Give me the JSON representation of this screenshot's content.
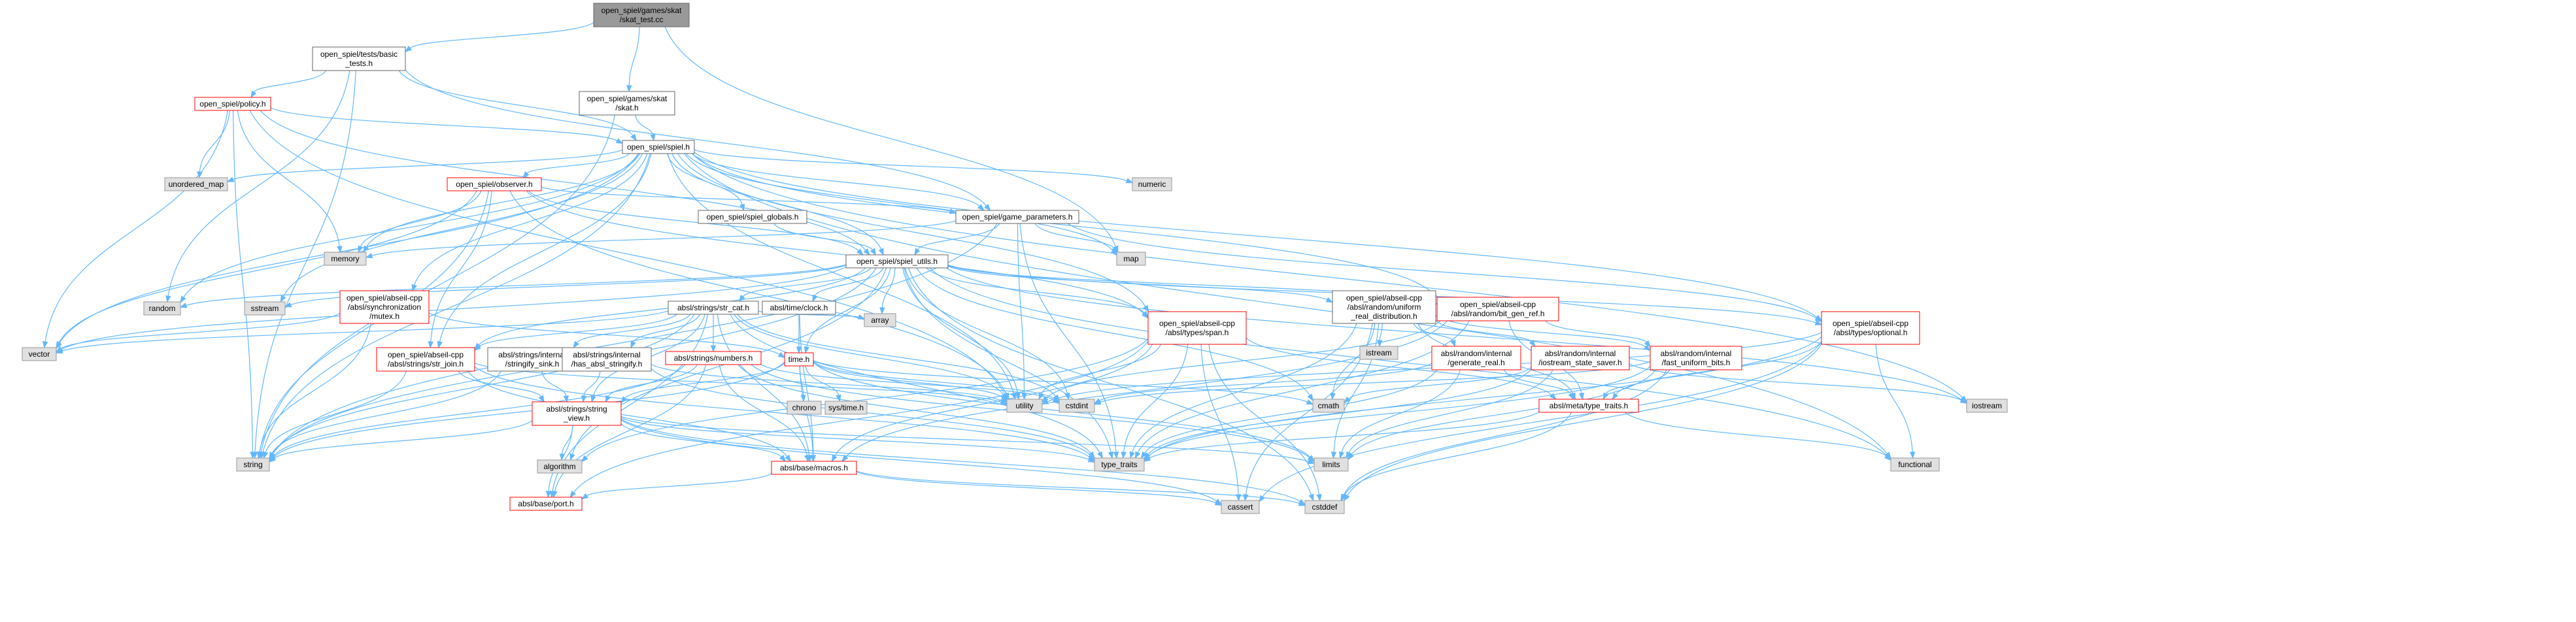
{
  "colors": {
    "edge": "#63b8ff",
    "node_fill": "#ffffff",
    "node_stroke": "#666666",
    "focus_fill": "#999999",
    "focus_stroke": "#666666",
    "broken_stroke": "#ff0000",
    "system_fill": "#e0e0e0",
    "system_stroke": "#999999"
  },
  "nodes": [
    {
      "id": "skat_test",
      "kind": "focus",
      "lines": [
        "open_spiel/games/skat",
        "/skat_test.cc"
      ]
    },
    {
      "id": "basic_tests",
      "kind": "local",
      "lines": [
        "open_spiel/tests/basic",
        "_tests.h"
      ]
    },
    {
      "id": "skat_h",
      "kind": "local",
      "lines": [
        "open_spiel/games/skat",
        "/skat.h"
      ]
    },
    {
      "id": "policy",
      "kind": "broken",
      "lines": [
        "open_spiel/policy.h"
      ]
    },
    {
      "id": "spiel",
      "kind": "local",
      "lines": [
        "open_spiel/spiel.h"
      ]
    },
    {
      "id": "unordered_map",
      "kind": "system",
      "lines": [
        "unordered_map"
      ]
    },
    {
      "id": "observer",
      "kind": "broken",
      "lines": [
        "open_spiel/observer.h"
      ]
    },
    {
      "id": "spiel_globals",
      "kind": "local",
      "lines": [
        "open_spiel/spiel_globals.h"
      ]
    },
    {
      "id": "game_parameters",
      "kind": "local",
      "lines": [
        "open_spiel/game_parameters.h"
      ]
    },
    {
      "id": "numeric",
      "kind": "system",
      "lines": [
        "numeric"
      ]
    },
    {
      "id": "memory",
      "kind": "system",
      "lines": [
        "memory"
      ]
    },
    {
      "id": "map",
      "kind": "system",
      "lines": [
        "map"
      ]
    },
    {
      "id": "spiel_utils",
      "kind": "local",
      "lines": [
        "open_spiel/spiel_utils.h"
      ]
    },
    {
      "id": "random",
      "kind": "system",
      "lines": [
        "random"
      ]
    },
    {
      "id": "sstream",
      "kind": "system",
      "lines": [
        "sstream"
      ]
    },
    {
      "id": "mutex",
      "kind": "broken",
      "lines": [
        "open_spiel/abseil-cpp",
        "/absl/synchronization",
        "/mutex.h"
      ]
    },
    {
      "id": "str_cat",
      "kind": "local",
      "lines": [
        "absl/strings/str_cat.h"
      ]
    },
    {
      "id": "clock",
      "kind": "local",
      "lines": [
        "absl/time/clock.h"
      ]
    },
    {
      "id": "uniform_real",
      "kind": "local",
      "lines": [
        "open_spiel/abseil-cpp",
        "/absl/random/uniform",
        "_real_distribution.h"
      ]
    },
    {
      "id": "bit_gen_ref",
      "kind": "broken",
      "lines": [
        "open_spiel/abseil-cpp",
        "/absl/random/bit_gen_ref.h"
      ]
    },
    {
      "id": "vector",
      "kind": "system",
      "lines": [
        "vector"
      ]
    },
    {
      "id": "str_join",
      "kind": "broken",
      "lines": [
        "open_spiel/abseil-cpp",
        "/absl/strings/str_join.h"
      ]
    },
    {
      "id": "stringify_sink",
      "kind": "local",
      "lines": [
        "absl/strings/internal",
        "/stringify_sink.h"
      ]
    },
    {
      "id": "has_absl_stringify",
      "kind": "local",
      "lines": [
        "absl/strings/internal",
        "/has_absl_stringify.h"
      ]
    },
    {
      "id": "numbers",
      "kind": "broken",
      "lines": [
        "absl/strings/numbers.h"
      ]
    },
    {
      "id": "time",
      "kind": "broken",
      "lines": [
        "time.h"
      ]
    },
    {
      "id": "array",
      "kind": "system",
      "lines": [
        "array"
      ]
    },
    {
      "id": "span",
      "kind": "broken",
      "lines": [
        "open_spiel/abseil-cpp",
        "/absl/types/span.h"
      ]
    },
    {
      "id": "istream",
      "kind": "system",
      "lines": [
        "istream"
      ]
    },
    {
      "id": "generate_real",
      "kind": "broken",
      "lines": [
        "absl/random/internal",
        "/generate_real.h"
      ]
    },
    {
      "id": "iostream_state_saver",
      "kind": "broken",
      "lines": [
        "absl/random/internal",
        "/iostream_state_saver.h"
      ]
    },
    {
      "id": "fast_uniform_bits",
      "kind": "broken",
      "lines": [
        "absl/random/internal",
        "/fast_uniform_bits.h"
      ]
    },
    {
      "id": "optional",
      "kind": "broken",
      "lines": [
        "open_spiel/abseil-cpp",
        "/absl/types/optional.h"
      ]
    },
    {
      "id": "string_view",
      "kind": "broken",
      "lines": [
        "absl/strings/string",
        "_view.h"
      ]
    },
    {
      "id": "chrono",
      "kind": "system",
      "lines": [
        "chrono"
      ]
    },
    {
      "id": "sys_time",
      "kind": "system",
      "lines": [
        "sys/time.h"
      ]
    },
    {
      "id": "utility",
      "kind": "system",
      "lines": [
        "utility"
      ]
    },
    {
      "id": "cstdint",
      "kind": "system",
      "lines": [
        "cstdint"
      ]
    },
    {
      "id": "cmath",
      "kind": "system",
      "lines": [
        "cmath"
      ]
    },
    {
      "id": "type_traits_absl",
      "kind": "broken",
      "lines": [
        "absl/meta/type_traits.h"
      ]
    },
    {
      "id": "iostream",
      "kind": "system",
      "lines": [
        "iostream"
      ]
    },
    {
      "id": "string",
      "kind": "system",
      "lines": [
        "string"
      ]
    },
    {
      "id": "algorithm",
      "kind": "system",
      "lines": [
        "algorithm"
      ]
    },
    {
      "id": "type_traits",
      "kind": "system",
      "lines": [
        "type_traits"
      ]
    },
    {
      "id": "macros",
      "kind": "broken",
      "lines": [
        "absl/base/macros.h"
      ]
    },
    {
      "id": "limits",
      "kind": "system",
      "lines": [
        "limits"
      ]
    },
    {
      "id": "functional",
      "kind": "system",
      "lines": [
        "functional"
      ]
    },
    {
      "id": "port",
      "kind": "broken",
      "lines": [
        "absl/base/port.h"
      ]
    },
    {
      "id": "cassert",
      "kind": "system",
      "lines": [
        "cassert"
      ]
    },
    {
      "id": "cstddef",
      "kind": "system",
      "lines": [
        "cstddef"
      ]
    }
  ],
  "edges": [
    [
      "skat_test",
      "basic_tests"
    ],
    [
      "skat_test",
      "skat_h"
    ],
    [
      "skat_test",
      "map"
    ],
    [
      "basic_tests",
      "policy"
    ],
    [
      "basic_tests",
      "spiel"
    ],
    [
      "basic_tests",
      "game_parameters"
    ],
    [
      "basic_tests",
      "random"
    ],
    [
      "basic_tests",
      "string"
    ],
    [
      "skat_h",
      "spiel"
    ],
    [
      "skat_h",
      "string"
    ],
    [
      "policy",
      "spiel"
    ],
    [
      "policy",
      "spiel_utils"
    ],
    [
      "policy",
      "unordered_map"
    ],
    [
      "policy",
      "memory"
    ],
    [
      "policy",
      "string"
    ],
    [
      "policy",
      "vector"
    ],
    [
      "policy",
      "utility"
    ],
    [
      "spiel",
      "unordered_map"
    ],
    [
      "spiel",
      "observer"
    ],
    [
      "spiel",
      "spiel_globals"
    ],
    [
      "spiel",
      "game_parameters"
    ],
    [
      "spiel",
      "spiel_utils"
    ],
    [
      "spiel",
      "numeric"
    ],
    [
      "spiel",
      "memory"
    ],
    [
      "spiel",
      "map"
    ],
    [
      "spiel",
      "random"
    ],
    [
      "spiel",
      "sstream"
    ],
    [
      "spiel",
      "string"
    ],
    [
      "spiel",
      "vector"
    ],
    [
      "spiel",
      "mutex"
    ],
    [
      "spiel",
      "str_join"
    ],
    [
      "spiel",
      "span"
    ],
    [
      "spiel",
      "optional"
    ],
    [
      "spiel",
      "bit_gen_ref"
    ],
    [
      "spiel",
      "utility"
    ],
    [
      "spiel",
      "functional"
    ],
    [
      "spiel",
      "iostream"
    ],
    [
      "observer",
      "game_parameters"
    ],
    [
      "observer",
      "spiel_utils"
    ],
    [
      "observer",
      "memory"
    ],
    [
      "observer",
      "string"
    ],
    [
      "observer",
      "vector"
    ],
    [
      "observer",
      "span"
    ],
    [
      "observer",
      "str_join"
    ],
    [
      "observer",
      "utility"
    ],
    [
      "spiel_globals",
      "spiel_utils"
    ],
    [
      "game_parameters",
      "spiel_utils"
    ],
    [
      "game_parameters",
      "map"
    ],
    [
      "game_parameters",
      "memory"
    ],
    [
      "game_parameters",
      "string"
    ],
    [
      "game_parameters",
      "utility"
    ],
    [
      "game_parameters",
      "optional"
    ],
    [
      "game_parameters",
      "type_traits"
    ],
    [
      "spiel_utils",
      "random"
    ],
    [
      "spiel_utils",
      "sstream"
    ],
    [
      "spiel_utils",
      "str_cat"
    ],
    [
      "spiel_utils",
      "clock"
    ],
    [
      "spiel_utils",
      "uniform_real"
    ],
    [
      "spiel_utils",
      "bit_gen_ref"
    ],
    [
      "spiel_utils",
      "span"
    ],
    [
      "spiel_utils",
      "str_join"
    ],
    [
      "spiel_utils",
      "optional"
    ],
    [
      "spiel_utils",
      "time"
    ],
    [
      "spiel_utils",
      "array"
    ],
    [
      "spiel_utils",
      "vector"
    ],
    [
      "spiel_utils",
      "string"
    ],
    [
      "spiel_utils",
      "utility"
    ],
    [
      "spiel_utils",
      "cstdint"
    ],
    [
      "spiel_utils",
      "algorithm"
    ],
    [
      "spiel_utils",
      "cmath"
    ],
    [
      "spiel_utils",
      "iostream"
    ],
    [
      "spiel_utils",
      "cstddef"
    ],
    [
      "spiel_utils",
      "functional"
    ],
    [
      "spiel_utils",
      "type_traits"
    ],
    [
      "mutex",
      "vector"
    ],
    [
      "mutex",
      "time"
    ],
    [
      "mutex",
      "string"
    ],
    [
      "str_cat",
      "array"
    ],
    [
      "str_cat",
      "stringify_sink"
    ],
    [
      "str_cat",
      "has_absl_stringify"
    ],
    [
      "str_cat",
      "numbers"
    ],
    [
      "str_cat",
      "string_view"
    ],
    [
      "str_cat",
      "str_join"
    ],
    [
      "str_cat",
      "string"
    ],
    [
      "str_cat",
      "vector"
    ],
    [
      "str_cat",
      "utility"
    ],
    [
      "str_cat",
      "cstdint"
    ],
    [
      "str_cat",
      "type_traits"
    ],
    [
      "str_cat",
      "macros"
    ],
    [
      "str_cat",
      "port"
    ],
    [
      "clock",
      "time"
    ],
    [
      "clock",
      "macros"
    ],
    [
      "uniform_real",
      "istream"
    ],
    [
      "uniform_real",
      "generate_real"
    ],
    [
      "uniform_real",
      "iostream_state_saver"
    ],
    [
      "uniform_real",
      "fast_uniform_bits"
    ],
    [
      "uniform_real",
      "type_traits_absl"
    ],
    [
      "uniform_real",
      "cmath"
    ],
    [
      "uniform_real",
      "limits"
    ],
    [
      "uniform_real",
      "type_traits"
    ],
    [
      "uniform_real",
      "cassert"
    ],
    [
      "bit_gen_ref",
      "fast_uniform_bits"
    ],
    [
      "bit_gen_ref",
      "type_traits_absl"
    ],
    [
      "bit_gen_ref",
      "utility"
    ],
    [
      "bit_gen_ref",
      "type_traits"
    ],
    [
      "bit_gen_ref",
      "macros"
    ],
    [
      "str_join",
      "string_view"
    ],
    [
      "str_join",
      "string"
    ],
    [
      "str_join",
      "utility"
    ],
    [
      "str_join",
      "type_traits"
    ],
    [
      "str_join",
      "macros"
    ],
    [
      "stringify_sink",
      "string_view"
    ],
    [
      "stringify_sink",
      "string"
    ],
    [
      "has_absl_stringify",
      "string_view"
    ],
    [
      "has_absl_stringify",
      "utility"
    ],
    [
      "has_absl_stringify",
      "type_traits"
    ],
    [
      "numbers",
      "string_view"
    ],
    [
      "numbers",
      "string"
    ],
    [
      "numbers",
      "cstdint"
    ],
    [
      "numbers",
      "limits"
    ],
    [
      "numbers",
      "type_traits"
    ],
    [
      "numbers",
      "macros"
    ],
    [
      "numbers",
      "port"
    ],
    [
      "time",
      "chrono"
    ],
    [
      "time",
      "sys_time"
    ],
    [
      "time",
      "string_view"
    ],
    [
      "time",
      "cmath"
    ],
    [
      "time",
      "cstdint"
    ],
    [
      "time",
      "limits"
    ],
    [
      "time",
      "string"
    ],
    [
      "time",
      "utility"
    ],
    [
      "time",
      "macros"
    ],
    [
      "span",
      "algorithm"
    ],
    [
      "span",
      "cassert"
    ],
    [
      "span",
      "cstddef"
    ],
    [
      "span",
      "type_traits"
    ],
    [
      "span",
      "macros"
    ],
    [
      "span",
      "port"
    ],
    [
      "span",
      "type_traits_absl"
    ],
    [
      "span",
      "utility"
    ],
    [
      "generate_real",
      "cstdint"
    ],
    [
      "generate_real",
      "limits"
    ],
    [
      "generate_real",
      "type_traits"
    ],
    [
      "generate_real",
      "type_traits_absl"
    ],
    [
      "iostream_state_saver",
      "cmath"
    ],
    [
      "iostream_state_saver",
      "iostream"
    ],
    [
      "iostream_state_saver",
      "limits"
    ],
    [
      "iostream_state_saver",
      "type_traits"
    ],
    [
      "fast_uniform_bits",
      "cstddef"
    ],
    [
      "fast_uniform_bits",
      "cstdint"
    ],
    [
      "fast_uniform_bits",
      "limits"
    ],
    [
      "fast_uniform_bits",
      "type_traits"
    ],
    [
      "fast_uniform_bits",
      "type_traits_absl"
    ],
    [
      "optional",
      "functional"
    ],
    [
      "optional",
      "cassert"
    ],
    [
      "optional",
      "type_traits_absl"
    ],
    [
      "optional",
      "utility"
    ],
    [
      "optional",
      "type_traits"
    ],
    [
      "optional",
      "cstddef"
    ],
    [
      "string_view",
      "algorithm"
    ],
    [
      "string_view",
      "cassert"
    ],
    [
      "string_view",
      "cstddef"
    ],
    [
      "string_view",
      "string"
    ],
    [
      "string_view",
      "limits"
    ],
    [
      "string_view",
      "port"
    ],
    [
      "string_view",
      "macros"
    ],
    [
      "string_view",
      "type_traits"
    ],
    [
      "type_traits_absl",
      "cstddef"
    ],
    [
      "type_traits_absl",
      "functional"
    ],
    [
      "type_traits_absl",
      "type_traits"
    ],
    [
      "macros",
      "cassert"
    ],
    [
      "macros",
      "cstddef"
    ],
    [
      "macros",
      "port"
    ]
  ]
}
